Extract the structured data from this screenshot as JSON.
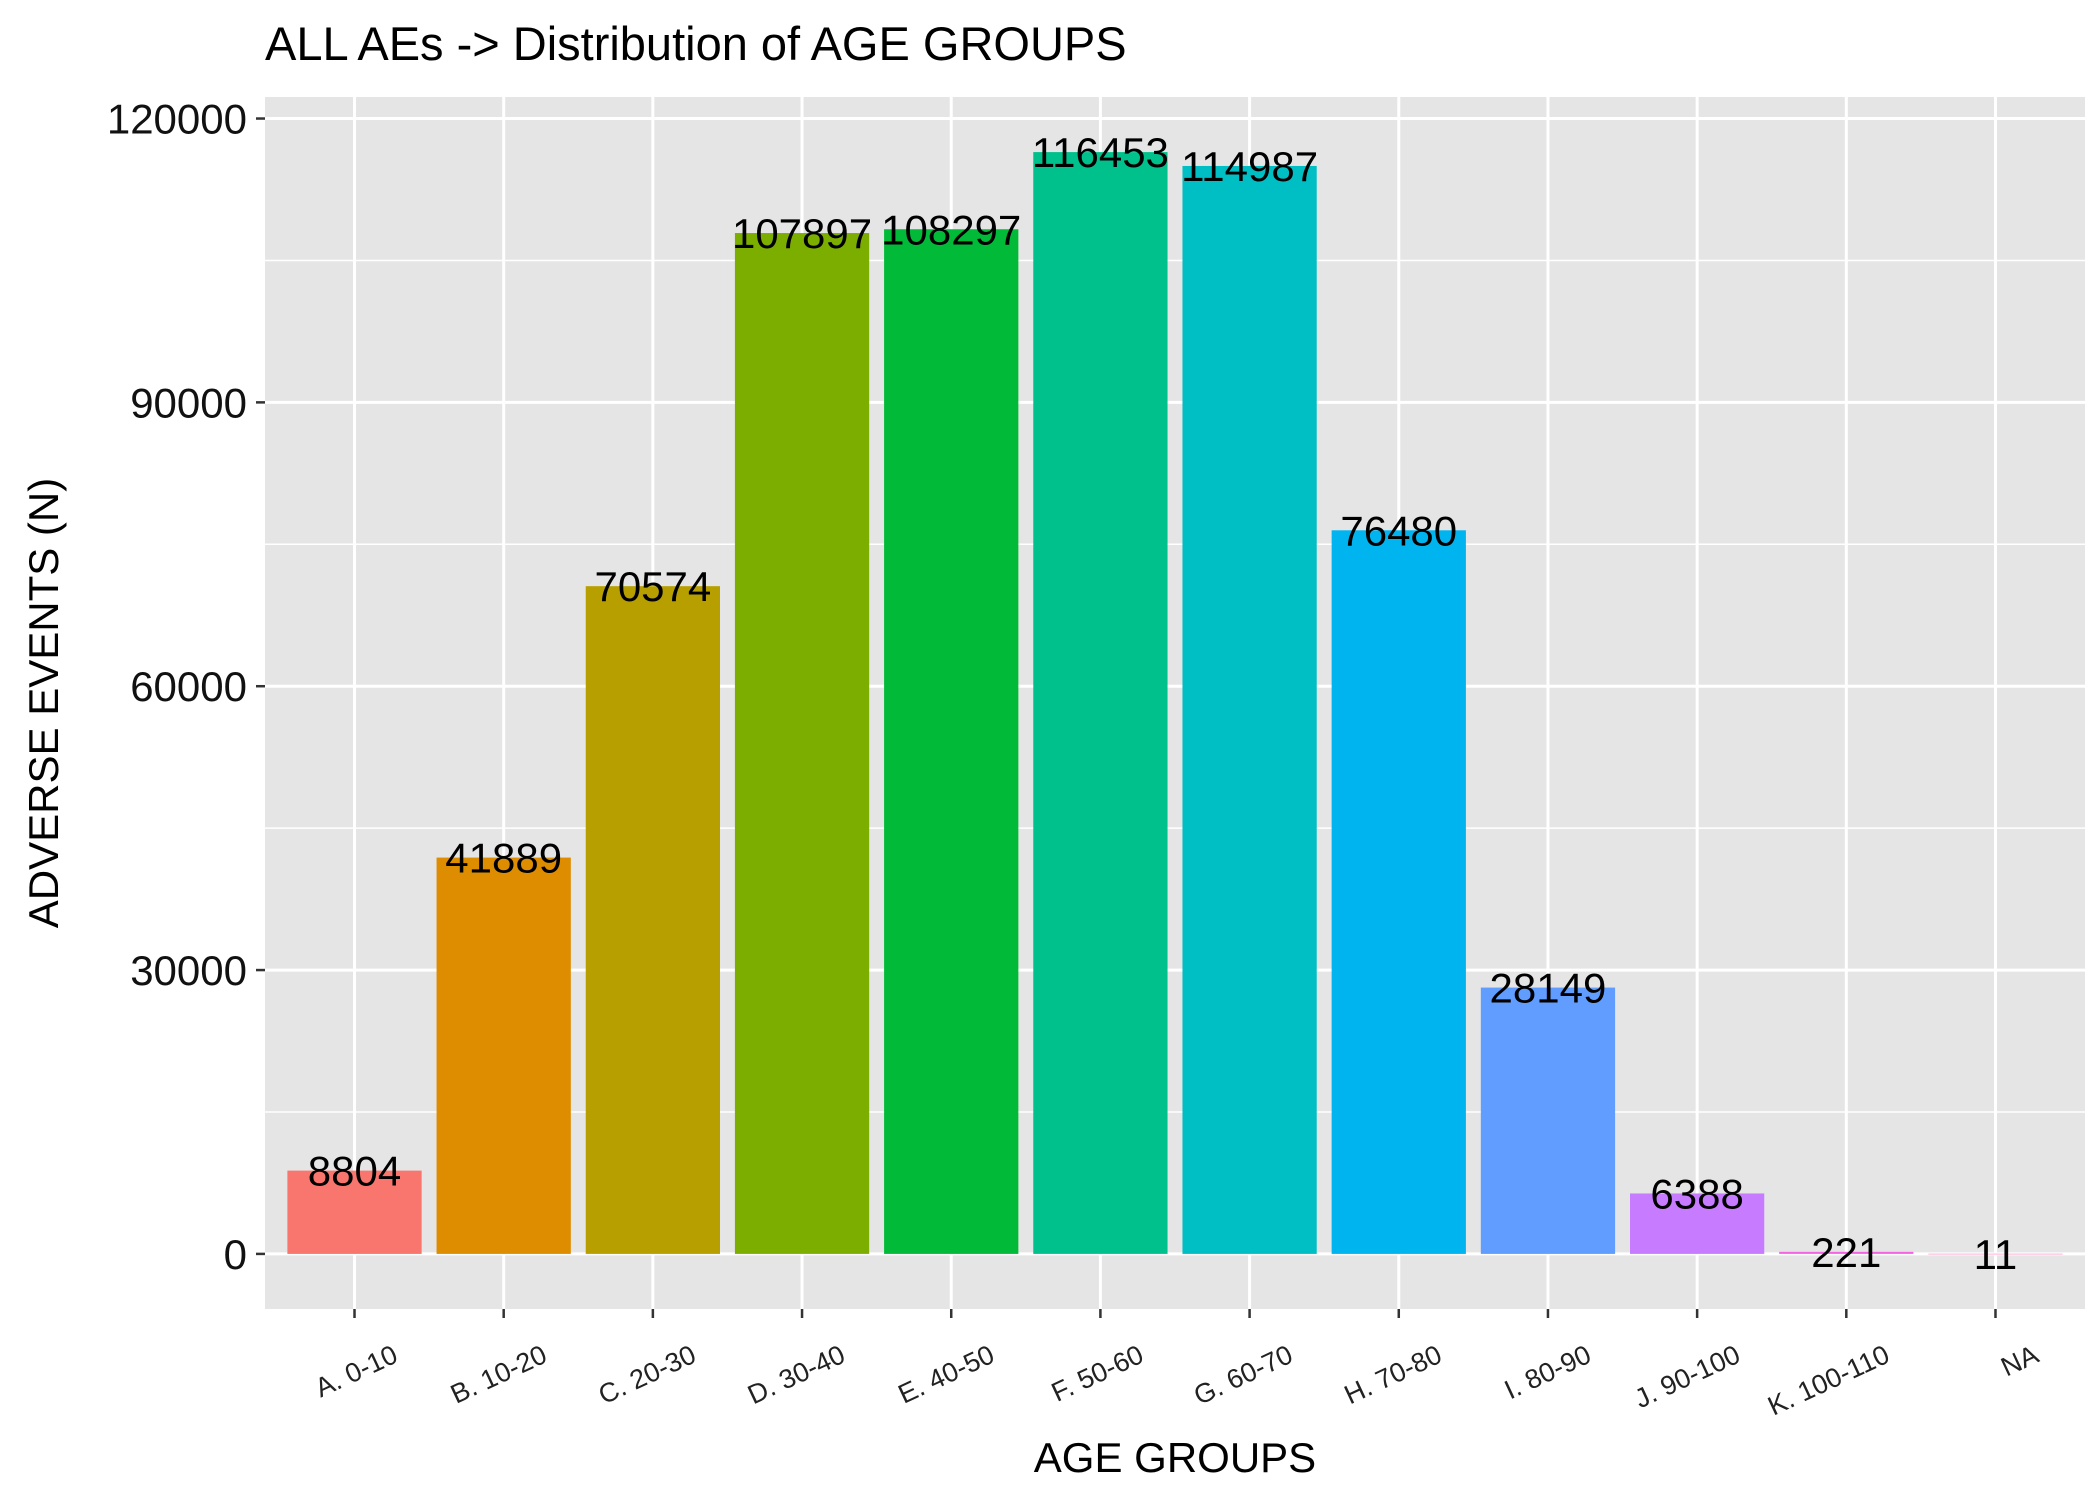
{
  "chart_data": {
    "type": "bar",
    "title": "ALL AEs -> Distribution of AGE GROUPS",
    "xlabel": "AGE GROUPS",
    "ylabel": "ADVERSE EVENTS (N)",
    "categories": [
      "A. 0-10",
      "B. 10-20",
      "C. 20-30",
      "D. 30-40",
      "E. 40-50",
      "F. 50-60",
      "G. 60-70",
      "H. 70-80",
      "I. 80-90",
      "J. 90-100",
      "K. 100-110",
      "NA"
    ],
    "values": [
      8804,
      41889,
      70574,
      107897,
      108297,
      116453,
      114987,
      76480,
      28149,
      6388,
      221,
      11
    ],
    "data_labels": [
      "8804",
      "41889",
      "70574",
      "107897",
      "108297",
      "116453",
      "114987",
      "76480",
      "28149",
      "6388",
      "221",
      "11"
    ],
    "colors": [
      "#F8766D",
      "#DE8C00",
      "#B79F00",
      "#7CAE00",
      "#00BA38",
      "#00C08B",
      "#00BFC4",
      "#00B4F0",
      "#619CFF",
      "#C77CFF",
      "#F564E3",
      "#FF64B0"
    ],
    "yticks": [
      0,
      30000,
      60000,
      90000,
      120000
    ],
    "ytick_labels": [
      "0",
      "30000",
      "60000",
      "90000",
      "120000"
    ],
    "ylim": [
      -5823,
      122276
    ],
    "grid": true,
    "legend": "none",
    "panel_background": "#E5E5E5",
    "grid_color": "#FFFFFF"
  }
}
